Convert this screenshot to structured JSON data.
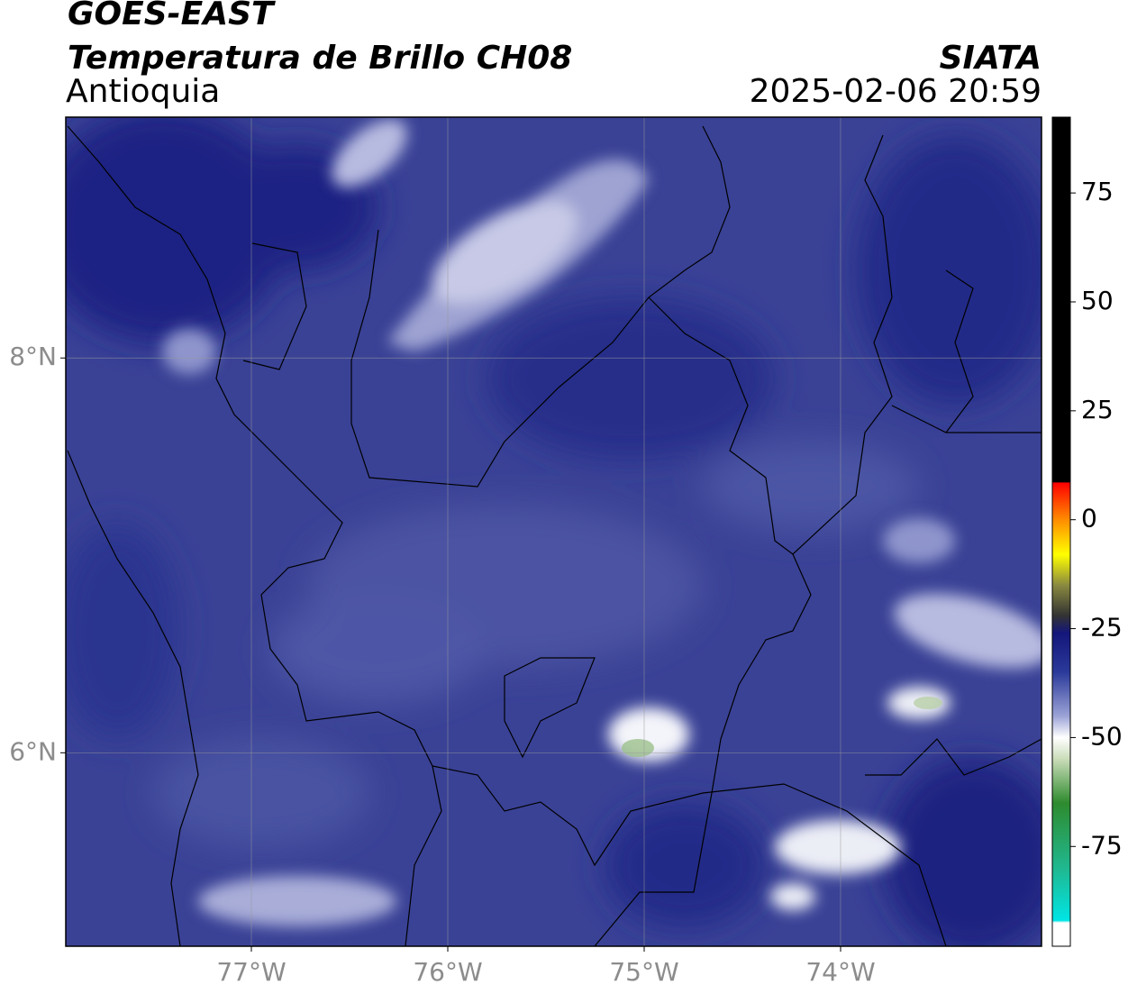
{
  "header": {
    "title": "GOES-EAST",
    "subtitle": "Temperatura de Brillo CH08",
    "region": "Antioquia",
    "source": "SIATA",
    "timestamp": "2025-02-06 20:59"
  },
  "map": {
    "xlim": [
      -77.945,
      -72.977
    ],
    "ylim": [
      5.02,
      9.22
    ],
    "xticks": [
      {
        "value": -77,
        "label": "77°W"
      },
      {
        "value": -76,
        "label": "76°W"
      },
      {
        "value": -75,
        "label": "75°W"
      },
      {
        "value": -74,
        "label": "74°W"
      }
    ],
    "yticks": [
      {
        "value": 8,
        "label": "8°N"
      },
      {
        "value": 6,
        "label": "6°N"
      }
    ],
    "grid": true
  },
  "colorbar": {
    "lim": [
      -97.9,
      92.4
    ],
    "ticks": [
      75,
      50,
      25,
      0,
      -25,
      -50,
      -75
    ],
    "colormap": [
      [
        92.4,
        "#000000"
      ],
      [
        8.6,
        "#000000"
      ],
      [
        8.5,
        "#ff0000"
      ],
      [
        0,
        "#ff8c00"
      ],
      [
        -8,
        "#ffff00"
      ],
      [
        -15,
        "#8a8a40"
      ],
      [
        -22,
        "#333333"
      ],
      [
        -26,
        "#14167a"
      ],
      [
        -35,
        "#2b3a9a"
      ],
      [
        -45,
        "#9aa2d6"
      ],
      [
        -50,
        "#ffffff"
      ],
      [
        -55,
        "#c9dcb8"
      ],
      [
        -65,
        "#2e8b2e"
      ],
      [
        -80,
        "#20b890"
      ],
      [
        -92,
        "#00e5e5"
      ],
      [
        -92.5,
        "#ffffff"
      ],
      [
        -97.9,
        "#ffffff"
      ]
    ]
  }
}
